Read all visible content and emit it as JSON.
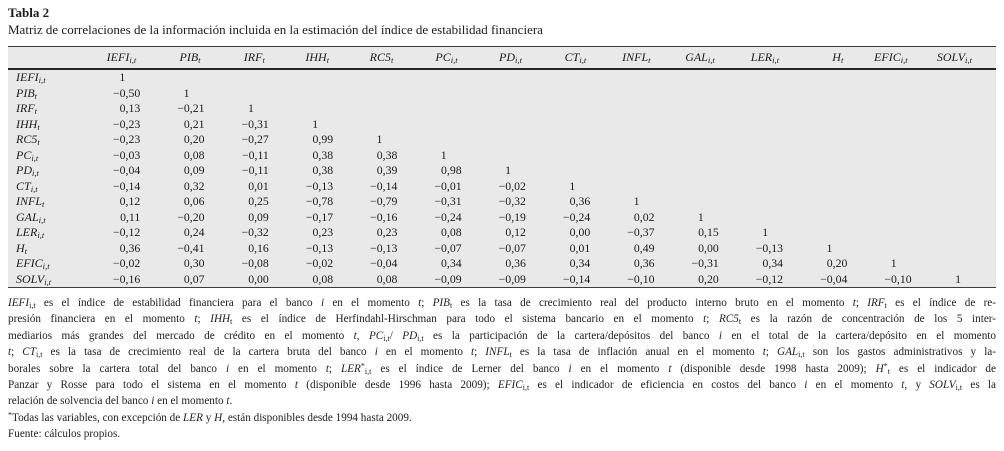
{
  "colors": {
    "page_bg": "#ffffff",
    "table_bg": "#e9e9e9",
    "rule": "#3c3c3c",
    "heavy_rule": "#262626",
    "text": "#1c1c1c"
  },
  "title": {
    "label": "Tabla 2",
    "caption": "Matriz de correlaciones de la información incluida en la estimación del índice de estabilidad financiera"
  },
  "table": {
    "columns": [
      "*IEFI*_[i,t]",
      "*PIB*_[t]",
      "*IRF*_[t]",
      "*IHH*_[t]",
      "*RC5*_[t]",
      "*PC*_[i,t]",
      "*PD*_[i,t]",
      "*CT*_[i,t]",
      "*INFL*_[t]",
      "*GAL*_[i,t]",
      "*LER*_[i,t]",
      "*H*_[t]",
      "*EFIC*_[i,t]",
      "*SOLV*_[i,t]"
    ],
    "rows": [
      {
        "label": "*IEFI*_[i,t]",
        "values": [
          "1"
        ]
      },
      {
        "label": "*PIB*_[t]",
        "values": [
          "−0,50",
          "1"
        ]
      },
      {
        "label": "*IRF*_[t]",
        "values": [
          "0,13",
          "−0,21",
          "1"
        ]
      },
      {
        "label": "*IHH*_[t]",
        "values": [
          "−0,23",
          "0,21",
          "−0,31",
          "1"
        ]
      },
      {
        "label": "*RC5*_[t]",
        "values": [
          "−0,23",
          "0,20",
          "−0,27",
          "0,99",
          "1"
        ]
      },
      {
        "label": "*PC*_[i,t]",
        "values": [
          "−0,03",
          "0,08",
          "−0,11",
          "0,38",
          "0,38",
          "1"
        ]
      },
      {
        "label": "*PD*_[i,t]",
        "values": [
          "−0,04",
          "0,09",
          "−0,11",
          "0,38",
          "0,39",
          "0,98",
          "1"
        ]
      },
      {
        "label": "*CT*_[i,t]",
        "values": [
          "−0,14",
          "0,32",
          "0,01",
          "−0,13",
          "−0,14",
          "−0,01",
          "−0,02",
          "1"
        ]
      },
      {
        "label": "*INFL*_[t]",
        "values": [
          "0,12",
          "0,06",
          "0,25",
          "−0,78",
          "−0,79",
          "−0,31",
          "−0,32",
          "0,36",
          "1"
        ]
      },
      {
        "label": "*GAL*_[i,t]",
        "values": [
          "0,11",
          "−0,20",
          "0,09",
          "−0,17",
          "−0,16",
          "−0,24",
          "−0,19",
          "−0,24",
          "0,02",
          "1"
        ]
      },
      {
        "label": "*LER*_[i,t]",
        "values": [
          "−0,12",
          "0,24",
          "−0,32",
          "0,23",
          "0,23",
          "0,08",
          "0,12",
          "0,00",
          "−0,37",
          "0,15",
          "1"
        ]
      },
      {
        "label": "*H*_[t]",
        "values": [
          "0,36",
          "−0,41",
          "0,16",
          "−0,13",
          "−0,13",
          "−0,07",
          "−0,07",
          "0,01",
          "0,49",
          "0,00",
          "−0,13",
          "1"
        ]
      },
      {
        "label": "*EFIC*_[i,t]",
        "values": [
          "−0,02",
          "0,30",
          "−0,08",
          "−0,02",
          "−0,04",
          "0,34",
          "0,36",
          "0,34",
          "0,36",
          "−0,31",
          "0,34",
          "0,20",
          "1"
        ]
      },
      {
        "label": "*SOLV*_[i,t]",
        "values": [
          "−0,16",
          "0,07",
          "0,00",
          "0,08",
          "0,08",
          "−0,09",
          "−0,09",
          "−0,14",
          "−0,10",
          "0,20",
          "−0,12",
          "−0,04",
          "−0,10",
          "1"
        ]
      }
    ]
  },
  "footnote": {
    "lines": [
      {
        "text": "*IEFI*_[i,t] es el índice de estabilidad financiera para el banco *i* en el momento *t*; *PIB*_[t] es la tasa de crecimiento real del producto interno bruto en el momento *t*; *IRF*_[t] es el índice de re-",
        "justify": true
      },
      {
        "text": "presión financiera en el momento *t*; *IHH*_[t] es el índice de Herfindahl-Hirschman para todo el sistema bancario en el momento *t*; *RC5*_[t] es la razón de concentración de los 5 inter-",
        "justify": true
      },
      {
        "text": "mediarios más grandes del mercado de crédito en el momento *t*, *PC*_[i,t]/ *PD*_[i,t] es la participación de la cartera/depósitos del banco *i* en el total de la cartera/depósito en el momento",
        "justify": true
      },
      {
        "text": "*t*; *CT*_[i,t] es la tasa de crecimiento real de la cartera bruta del banco *i* en el momento *t*; *INFL*_[t] es la tasa de inflación anual en el momento *t*; *GAL*_[i,t] son los gastos administrativos y la-",
        "justify": true
      },
      {
        "text": "borales sobre la cartera total del banco *i* en el momento *t*; *LER*^[*]_[i,t] es el índice de Lerner del banco *i* en el momento *t* (disponible desde 1998 hasta 2009); *H*^[*]_[t] es el indicador de",
        "justify": true
      },
      {
        "text": "Panzar y Rosse para todo el sistema en el momento *t* (disponible desde 1996 hasta 2009); *EFIC*_[i,t] es el indicador de eficiencia en costos del banco *i* en el momento *t*, y *SOLV*_[i,t] es la",
        "justify": true
      },
      {
        "text": "relación de solvencia del banco *i* en el momento *t*.",
        "justify": false
      },
      {
        "text": "^[*]Todas las variables, con excepción de *LER* y *H*, están disponibles desde 1994 hasta 2009.",
        "justify": false
      },
      {
        "text": "Fuente: cálculos propios.",
        "justify": false
      }
    ]
  }
}
